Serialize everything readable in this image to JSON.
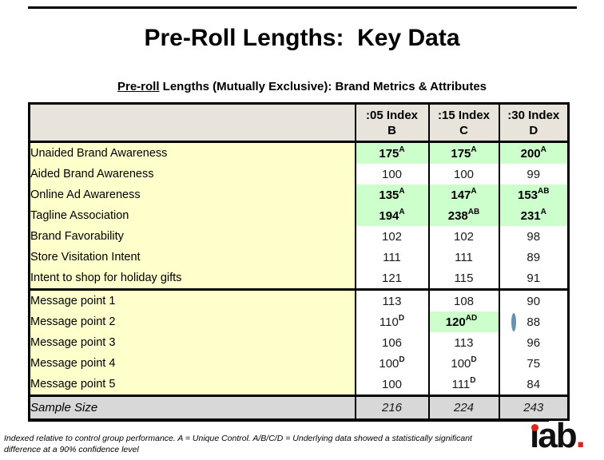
{
  "slide": {
    "title": "Pre-Roll Lengths:  Key Data",
    "subtitle": {
      "underlined": "Pre-roll",
      "rest": " Lengths (Mutually Exclusive): Brand Metrics & Attributes"
    },
    "footnote": {
      "line1": "Indexed relative to control group performance. A = Unique Control.  A/B/C/D = Underlying data showed a statistically significant",
      "line2": "difference at a 90% confidence level"
    },
    "logo": {
      "text": "iab",
      "period": "."
    }
  },
  "colors": {
    "header_bg": "#e8e4dc",
    "label_bg": "#ffffcc",
    "highlight_bg": "#ccffcc",
    "sample_bg": "#d8d8d8",
    "circle_stroke": "#6b92ad",
    "logo_red": "#e2231a"
  },
  "table": {
    "columns": [
      {
        "time": ":05 Index",
        "letter": "B"
      },
      {
        "time": ":15 Index",
        "letter": "C"
      },
      {
        "time": ":30 Index",
        "letter": "D"
      }
    ],
    "rows": [
      {
        "label": "Unaided Brand Awareness",
        "cells": [
          {
            "v": "175",
            "sup": "A",
            "hl": true
          },
          {
            "v": "175",
            "sup": "A",
            "hl": true
          },
          {
            "v": "200",
            "sup": "A",
            "hl": true
          }
        ]
      },
      {
        "label": "Aided Brand Awareness",
        "cells": [
          {
            "v": "100"
          },
          {
            "v": "100"
          },
          {
            "v": "99"
          }
        ]
      },
      {
        "label": "Online Ad Awareness",
        "cells": [
          {
            "v": "135",
            "sup": "A",
            "hl": true
          },
          {
            "v": "147",
            "sup": "A",
            "hl": true
          },
          {
            "v": "153",
            "sup": "AB",
            "hl": true
          }
        ]
      },
      {
        "label": "Tagline Association",
        "cells": [
          {
            "v": "194",
            "sup": "A",
            "hl": true
          },
          {
            "v": "238",
            "sup": "AB",
            "hl": true
          },
          {
            "v": "231",
            "sup": "A",
            "hl": true
          }
        ]
      },
      {
        "label": "Brand Favorability",
        "cells": [
          {
            "v": "102"
          },
          {
            "v": "102"
          },
          {
            "v": "98"
          }
        ]
      },
      {
        "label": "Store Visitation Intent",
        "cells": [
          {
            "v": "111"
          },
          {
            "v": "111"
          },
          {
            "v": "89"
          }
        ]
      },
      {
        "label": "Intent to shop for holiday gifts",
        "cells": [
          {
            "v": "121"
          },
          {
            "v": "115"
          },
          {
            "v": "91"
          }
        ]
      },
      {
        "label": "Message point 1",
        "section_start": true,
        "cells": [
          {
            "v": "113"
          },
          {
            "v": "108"
          },
          {
            "v": "90"
          }
        ]
      },
      {
        "label": "Message point 2",
        "cells": [
          {
            "v": "110",
            "sup": "D"
          },
          {
            "v": "120",
            "sup": "AD",
            "hl": true,
            "circled": true
          },
          {
            "v": "88"
          }
        ]
      },
      {
        "label": "Message point 3",
        "cells": [
          {
            "v": "106"
          },
          {
            "v": "113"
          },
          {
            "v": "96"
          }
        ]
      },
      {
        "label": "Message point 4",
        "cells": [
          {
            "v": "100",
            "sup": "D"
          },
          {
            "v": "100",
            "sup": "D"
          },
          {
            "v": "75"
          }
        ]
      },
      {
        "label": "Message point 5",
        "cells": [
          {
            "v": "100"
          },
          {
            "v": "111",
            "sup": "D"
          },
          {
            "v": "84"
          }
        ]
      },
      {
        "label": "Sample Size",
        "sample": true,
        "cells": [
          {
            "v": "216"
          },
          {
            "v": "224"
          },
          {
            "v": "243"
          }
        ]
      }
    ]
  }
}
